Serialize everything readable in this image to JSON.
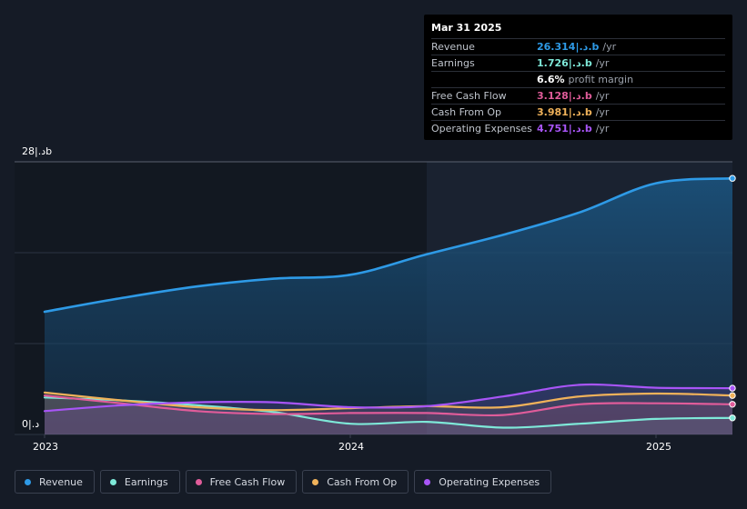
{
  "tooltip": {
    "date": "Mar 31 2025",
    "rows": [
      {
        "label": "Revenue",
        "value": "26.314|.د.b",
        "unit": "/yr",
        "color": "#2e9ae6"
      },
      {
        "label": "Earnings",
        "value": "1.726|.د.b",
        "unit": "/yr",
        "color": "#7ee8d8"
      },
      {
        "label": "",
        "value": "6.6%",
        "unit": "profit margin",
        "color": "#ffffff"
      },
      {
        "label": "Free Cash Flow",
        "value": "3.128|.د.b",
        "unit": "/yr",
        "color": "#e05c9a"
      },
      {
        "label": "Cash From Op",
        "value": "3.981|.د.b",
        "unit": "/yr",
        "color": "#f0b25a"
      },
      {
        "label": "Operating Expenses",
        "value": "4.751|.د.b",
        "unit": "/yr",
        "color": "#a855f7"
      }
    ]
  },
  "axis": {
    "y_top_label": "28|.دb",
    "y_bottom_label": "0|.د",
    "x_labels": [
      "2023",
      "2024",
      "2025"
    ]
  },
  "legend": [
    {
      "label": "Revenue",
      "color": "#2e9ae6"
    },
    {
      "label": "Earnings",
      "color": "#7ee8d8"
    },
    {
      "label": "Free Cash Flow",
      "color": "#e05c9a"
    },
    {
      "label": "Cash From Op",
      "color": "#f0b25a"
    },
    {
      "label": "Operating Expenses",
      "color": "#a855f7"
    }
  ],
  "chart_data": {
    "type": "area",
    "x_unit": "year",
    "ylim": [
      0,
      28
    ],
    "xlim": [
      2023.0,
      2025.25
    ],
    "grid": true,
    "forecast_start": 2024.25,
    "series": [
      {
        "name": "Revenue",
        "color": "#2e9ae6",
        "x": [
          2023.0,
          2023.25,
          2023.5,
          2023.75,
          2024.0,
          2024.25,
          2024.5,
          2024.75,
          2025.0,
          2025.25
        ],
        "y": [
          12.6,
          14.0,
          15.2,
          16.0,
          16.4,
          18.5,
          20.5,
          22.8,
          25.8,
          26.3
        ]
      },
      {
        "name": "Earnings",
        "color": "#7ee8d8",
        "x": [
          2023.0,
          2023.25,
          2023.5,
          2023.75,
          2024.0,
          2024.25,
          2024.5,
          2024.75,
          2025.0,
          2025.25
        ],
        "y": [
          3.8,
          3.5,
          3.0,
          2.3,
          1.1,
          1.3,
          0.7,
          1.1,
          1.6,
          1.7
        ]
      },
      {
        "name": "Free Cash Flow",
        "color": "#e05c9a",
        "x": [
          2023.0,
          2023.25,
          2023.5,
          2023.75,
          2024.0,
          2024.25,
          2024.5,
          2024.75,
          2025.0,
          2025.25
        ],
        "y": [
          4.0,
          3.2,
          2.4,
          2.1,
          2.2,
          2.2,
          2.0,
          3.1,
          3.2,
          3.1
        ]
      },
      {
        "name": "Cash From Op",
        "color": "#f0b25a",
        "x": [
          2023.0,
          2023.25,
          2023.5,
          2023.75,
          2024.0,
          2024.25,
          2024.5,
          2024.75,
          2025.0,
          2025.25
        ],
        "y": [
          4.3,
          3.5,
          2.8,
          2.5,
          2.7,
          2.9,
          2.8,
          3.9,
          4.2,
          4.0
        ]
      },
      {
        "name": "Operating Expenses",
        "color": "#a855f7",
        "x": [
          2023.0,
          2023.25,
          2023.5,
          2023.75,
          2024.0,
          2024.25,
          2024.5,
          2024.75,
          2025.0,
          2025.25
        ],
        "y": [
          2.4,
          3.0,
          3.3,
          3.3,
          2.8,
          2.9,
          3.9,
          5.1,
          4.8,
          4.75
        ]
      }
    ]
  }
}
